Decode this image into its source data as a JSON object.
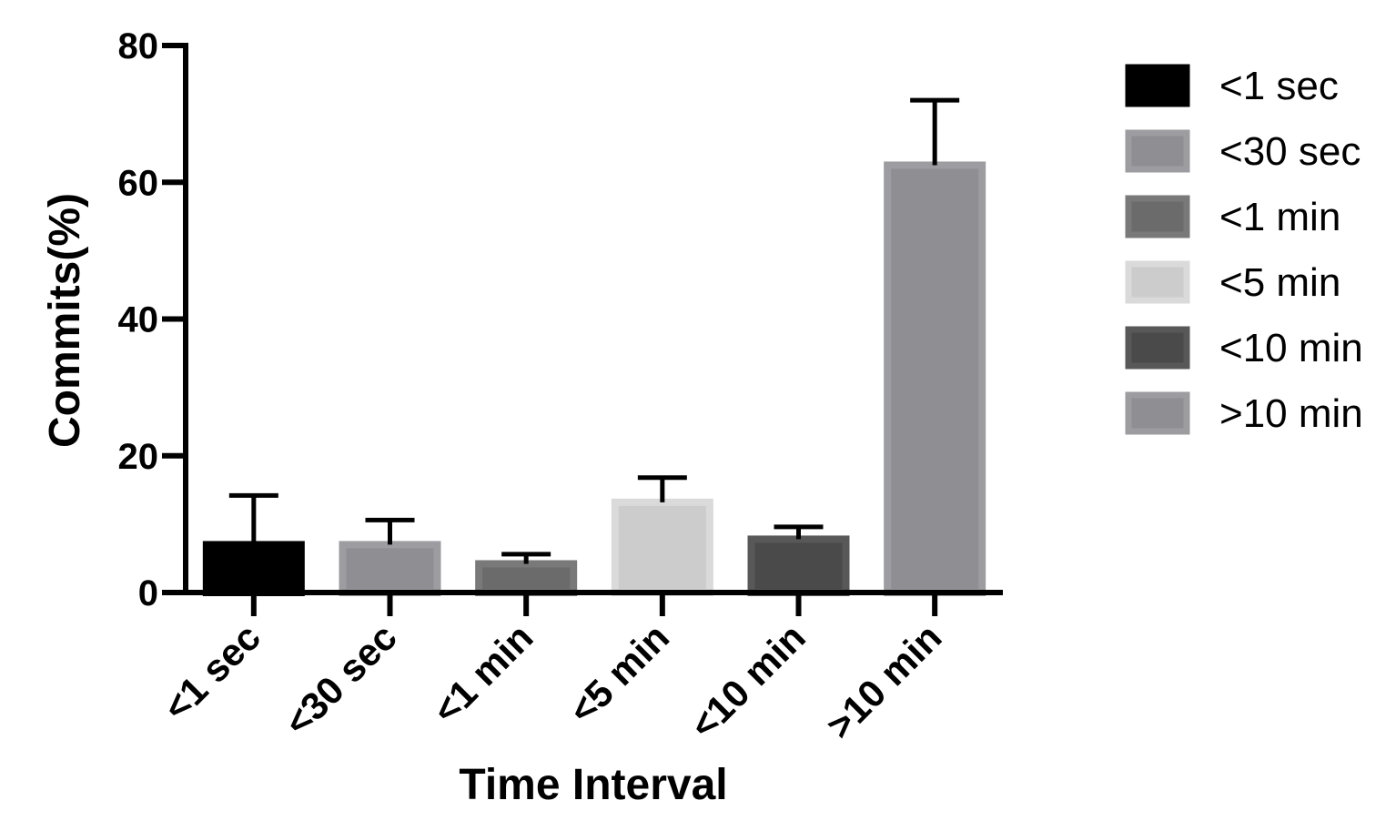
{
  "chart_data": {
    "type": "bar",
    "title": "",
    "xlabel": "Time Interval",
    "ylabel": "Commits(%)",
    "ylim": [
      0,
      80
    ],
    "yticks": [
      0,
      20,
      40,
      60,
      80
    ],
    "categories": [
      "<1 sec",
      "<30 sec",
      "<1 min",
      "<5 min",
      "<10 min",
      ">10 min"
    ],
    "values": [
      7,
      7,
      4.2,
      13.2,
      7.8,
      62.5
    ],
    "error_upper": [
      14.2,
      10.6,
      5.6,
      16.8,
      9.6,
      72.0
    ],
    "colors": [
      "#000000",
      "#8e8e93",
      "#6b6b6b",
      "#cccccc",
      "#4a4a4a",
      "#8e8e93"
    ],
    "legend": {
      "placement": "right",
      "entries": [
        "<1 sec",
        "<30 sec",
        "<1 min",
        "<5 min",
        "<10 min",
        ">10 min"
      ]
    },
    "grid": false
  }
}
